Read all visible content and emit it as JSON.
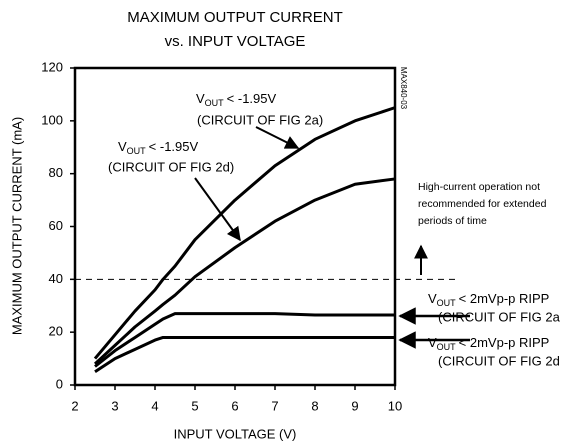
{
  "chart_data": {
    "type": "line",
    "title": [
      "MAXIMUM OUTPUT CURRENT",
      "vs. INPUT VOLTAGE"
    ],
    "x_label": "INPUT VOLTAGE (V)",
    "y_label": "MAXIMUM OUTPUT CURRENT (mA)",
    "x": [
      2.5,
      3,
      3.5,
      4,
      4.2,
      4.5,
      5,
      6,
      7,
      8,
      9,
      10
    ],
    "series": [
      {
        "color": "#000000",
        "values": [
          10,
          19,
          28,
          36,
          40,
          45,
          55,
          70,
          83,
          93,
          100,
          105
        ]
      },
      {
        "color": "#000000",
        "values": [
          8,
          15,
          22,
          28,
          30.5,
          34,
          41,
          52,
          62,
          70,
          76,
          78
        ]
      },
      {
        "color": "#000000",
        "values": [
          7,
          13,
          18,
          23,
          25,
          27,
          27,
          27,
          27,
          26.5,
          26.5,
          26.5
        ]
      },
      {
        "color": "#000000",
        "values": [
          5,
          10,
          13.5,
          17,
          18,
          18,
          18,
          18,
          18,
          18,
          18,
          18
        ]
      }
    ],
    "reference_line": 40,
    "xlim": [
      2,
      10
    ],
    "xticks": [
      2,
      3,
      4,
      5,
      6,
      7,
      8,
      9,
      10
    ],
    "ylim": [
      0,
      120
    ],
    "yticks": [
      0,
      20,
      40,
      60,
      80,
      100,
      120
    ],
    "grid": false,
    "annotations": [
      {
        "v": "V",
        "sub": "OUT",
        "text": "< -1.95V",
        "note": "(CIRCUIT OF FIG 2a)"
      },
      {
        "v": "V",
        "sub": "OUT",
        "text": "< -1.95V",
        "note": "(CIRCUIT OF FIG 2d)"
      },
      {
        "v": "V",
        "sub": "OUT",
        "text": "< 2mVp-p RIPP",
        "note": "(CIRCUIT OF FIG 2a"
      },
      {
        "v": "V",
        "sub": "OUT",
        "text": "< 2mVp-p RIPP",
        "note": "(CIRCUIT OF FIG 2d"
      }
    ],
    "note": [
      "High-current operation not",
      "recommended for extended",
      "periods of time"
    ],
    "figure_id": "MAX840-03"
  }
}
